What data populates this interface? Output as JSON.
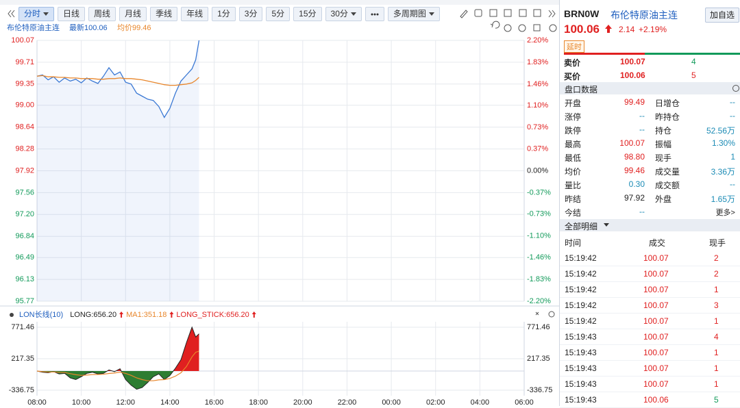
{
  "toolbar": {
    "buttons": [
      "分时",
      "日线",
      "周线",
      "月线",
      "季线",
      "年线",
      "1分",
      "3分",
      "5分",
      "15分",
      "30分",
      "多周期图"
    ]
  },
  "info": {
    "name": "布伦特原油主连",
    "latest": "最新100.06",
    "avg": "均价99.46"
  },
  "chart_data": [
    {
      "type": "line",
      "x": [
        "08:00",
        "08:15",
        "08:30",
        "08:45",
        "09:00",
        "09:15",
        "09:30",
        "09:45",
        "10:00",
        "10:15",
        "10:30",
        "10:45",
        "11:00",
        "11:15",
        "11:30",
        "11:45",
        "12:00",
        "12:15",
        "12:30",
        "12:45",
        "13:00",
        "13:15",
        "13:30",
        "13:45",
        "14:00",
        "14:15",
        "14:30",
        "14:45",
        "15:00",
        "15:10",
        "15:19"
      ],
      "series": [
        {
          "color": "#3a78d4",
          "values": [
            99.48,
            99.5,
            99.42,
            99.47,
            99.38,
            99.45,
            99.4,
            99.43,
            99.37,
            99.45,
            99.4,
            99.36,
            99.48,
            99.62,
            99.5,
            99.55,
            99.38,
            99.35,
            99.2,
            99.15,
            99.1,
            99.08,
            98.98,
            98.8,
            98.95,
            99.2,
            99.4,
            99.5,
            99.6,
            99.75,
            100.07
          ]
        },
        {
          "color": "#e8862b",
          "values": [
            99.48,
            99.49,
            99.47,
            99.47,
            99.46,
            99.46,
            99.45,
            99.45,
            99.44,
            99.44,
            99.44,
            99.43,
            99.43,
            99.44,
            99.44,
            99.45,
            99.44,
            99.44,
            99.43,
            99.42,
            99.4,
            99.38,
            99.36,
            99.34,
            99.33,
            99.33,
            99.34,
            99.35,
            99.37,
            99.41,
            99.46
          ]
        }
      ],
      "xlim": [
        "08:00",
        "06:00"
      ],
      "xticks": [
        "08:00",
        "10:00",
        "12:00",
        "14:00",
        "16:00",
        "18:00",
        "20:00",
        "22:00",
        "00:00",
        "02:00",
        "04:00",
        "06:00"
      ],
      "ylim": [
        95.77,
        100.07
      ],
      "yticks": [
        100.07,
        99.71,
        99.35,
        {
          "value": 99,
          "label": "99.00"
        },
        98.64,
        98.28,
        97.92,
        97.56,
        {
          "value": 97.2,
          "label": "97.20"
        },
        96.84,
        96.49,
        96.13,
        95.77
      ],
      "y2lim": [
        -2.2,
        2.2
      ],
      "y2ticks": [
        {
          "value": 2.2,
          "label": "2.20%"
        },
        {
          "value": 1.83,
          "label": "1.83%"
        },
        {
          "value": 1.46,
          "label": "1.46%"
        },
        {
          "value": 1.1,
          "label": "1.10%"
        },
        {
          "value": 0.73,
          "label": "0.73%"
        },
        {
          "value": 0.37,
          "label": "0.37%"
        },
        {
          "value": 0,
          "label": "0.00%"
        },
        {
          "value": -0.37,
          "label": "-0.37%"
        },
        {
          "value": -0.73,
          "label": "-0.73%"
        },
        {
          "value": -1.1,
          "label": "-1.10%"
        },
        {
          "value": -1.46,
          "label": "-1.46%"
        },
        {
          "value": -1.83,
          "label": "-1.83%"
        },
        {
          "value": -2.2,
          "label": "-2.20%"
        }
      ],
      "grid": true
    },
    {
      "type": "area",
      "legend": [
        "LON长线(10)",
        "LONG:656.20",
        "MA1:351.18",
        "LONG_STICK:656.20"
      ],
      "x": [
        "08:00",
        "08:15",
        "08:30",
        "08:45",
        "09:00",
        "09:15",
        "09:30",
        "09:45",
        "10:00",
        "10:15",
        "10:30",
        "10:45",
        "11:00",
        "11:15",
        "11:30",
        "11:45",
        "12:00",
        "12:15",
        "12:30",
        "12:45",
        "13:00",
        "13:15",
        "13:30",
        "13:45",
        "14:00",
        "14:15",
        "14:30",
        "14:45",
        "15:00",
        "15:10",
        "15:19"
      ],
      "series": [
        {
          "color": "#e02020",
          "values": [
            0,
            -20,
            -30,
            -10,
            -50,
            -40,
            -120,
            -150,
            -100,
            -40,
            -20,
            -50,
            -40,
            20,
            -10,
            40,
            -150,
            -250,
            -320,
            -290,
            -200,
            -100,
            -50,
            -150,
            -80,
            50,
            200,
            500,
            771.46,
            600,
            656.2
          ]
        },
        {
          "color": "#e8862b",
          "values": [
            0,
            -10,
            -17,
            -15,
            -22,
            -25,
            -45,
            -65,
            -75,
            -70,
            -62,
            -60,
            -56,
            -42,
            -35,
            -20,
            -40,
            -75,
            -120,
            -150,
            -170,
            -170,
            -155,
            -150,
            -130,
            -90,
            -30,
            80,
            250,
            330,
            351.18
          ]
        }
      ],
      "xlim": [
        "08:00",
        "06:00"
      ],
      "xticks": [
        "08:00",
        "10:00",
        "12:00",
        "14:00",
        "16:00",
        "18:00",
        "20:00",
        "22:00",
        "00:00",
        "02:00",
        "04:00",
        "06:00"
      ],
      "ylim": [
        -336.75,
        771.46
      ],
      "yticks": [
        771.46,
        217.35,
        -336.75
      ],
      "grid": true
    }
  ],
  "quote": {
    "code": "BRN0W",
    "name": "布伦特原油主连",
    "add": "加自选",
    "price": "100.06",
    "change": "2.14",
    "pct": "+2.19%",
    "delay": "延时",
    "ask_label": "卖价",
    "ask": "100.07",
    "ask_qty": "4",
    "bid_label": "买价",
    "bid": "100.06",
    "bid_qty": "5"
  },
  "stats": {
    "title": "盘口数据",
    "rows": [
      [
        "开盘",
        "99.49",
        "日增仓",
        "--"
      ],
      [
        "涨停",
        "--",
        "昨持仓",
        "--"
      ],
      [
        "跌停",
        "--",
        "持仓",
        "52.56万"
      ],
      [
        "最高",
        "100.07",
        "振幅",
        "1.30%"
      ],
      [
        "最低",
        "98.80",
        "现手",
        "1"
      ],
      [
        "均价",
        "99.46",
        "成交量",
        "3.36万"
      ],
      [
        "量比",
        "0.30",
        "成交额",
        "--"
      ],
      [
        "昨结",
        "97.92",
        "外盘",
        "1.65万"
      ],
      [
        "今结",
        "--",
        "更多>"
      ]
    ]
  },
  "trades": {
    "title": "全部明细",
    "header": [
      "时间",
      "成交",
      "现手"
    ],
    "rows": [
      [
        "15:19:42",
        "100.07",
        "2"
      ],
      [
        "15:19:42",
        "100.07",
        "2"
      ],
      [
        "15:19:42",
        "100.07",
        "1"
      ],
      [
        "15:19:42",
        "100.07",
        "3"
      ],
      [
        "15:19:42",
        "100.07",
        "1"
      ],
      [
        "15:19:43",
        "100.07",
        "4"
      ],
      [
        "15:19:43",
        "100.07",
        "1"
      ],
      [
        "15:19:43",
        "100.07",
        "1"
      ],
      [
        "15:19:43",
        "100.07",
        "1"
      ],
      [
        "15:19:43",
        "100.06",
        "5"
      ]
    ]
  }
}
